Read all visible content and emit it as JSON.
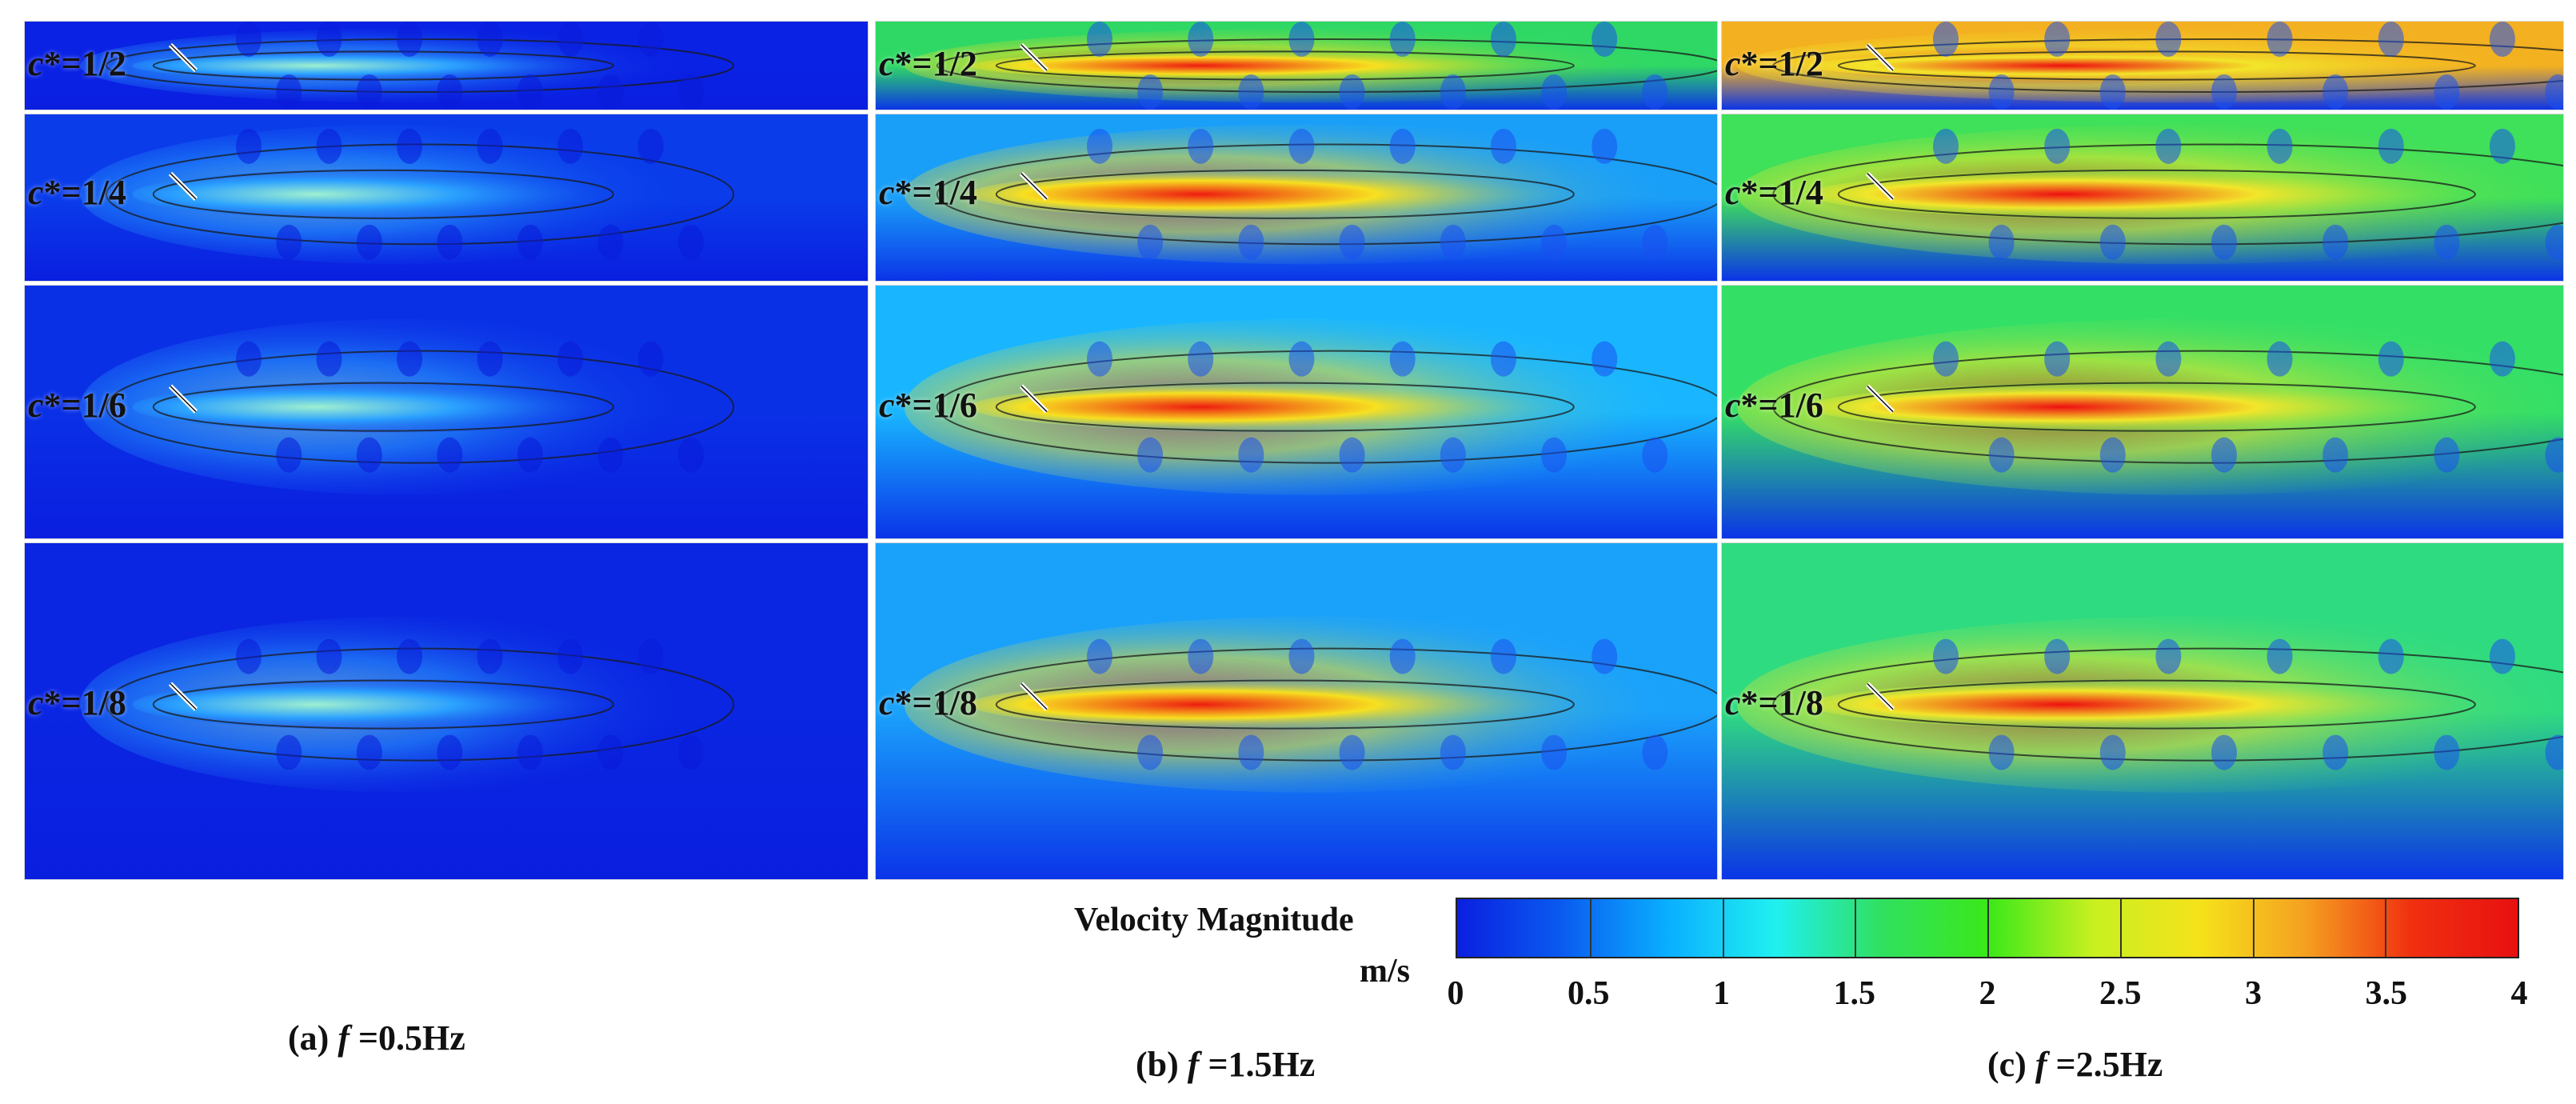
{
  "figure": {
    "columns": [
      {
        "caption_prefix": "(a)",
        "f_symbol": "f",
        "caption_suffix": " =0.5Hz",
        "frequency_hz": 0.5
      },
      {
        "caption_prefix": "(b)",
        "f_symbol": "f",
        "caption_suffix": " =1.5Hz",
        "frequency_hz": 1.5
      },
      {
        "caption_prefix": "(c)",
        "f_symbol": "f",
        "caption_suffix": " =2.5Hz",
        "frequency_hz": 2.5
      }
    ],
    "rows": [
      {
        "c_symbol": "c",
        "label_suffix": "*=1/2"
      },
      {
        "c_symbol": "c",
        "label_suffix": "*=1/4"
      },
      {
        "c_symbol": "c",
        "label_suffix": "*=1/6"
      },
      {
        "c_symbol": "c",
        "label_suffix": "*=1/8"
      }
    ],
    "legend": {
      "title": "Velocity  Magnitude",
      "units": "m/s",
      "ticks": [
        "0",
        "0.5",
        "1",
        "1.5",
        "2",
        "2.5",
        "3",
        "3.5",
        "4"
      ],
      "min": 0,
      "max": 4,
      "colors": [
        "#0a1fe0",
        "#0a5cf0",
        "#0ab0ff",
        "#20f0f0",
        "#30e060",
        "#3ae81a",
        "#c8f020",
        "#f5e21a",
        "#f5a020",
        "#f03010",
        "#e81010"
      ]
    }
  }
}
